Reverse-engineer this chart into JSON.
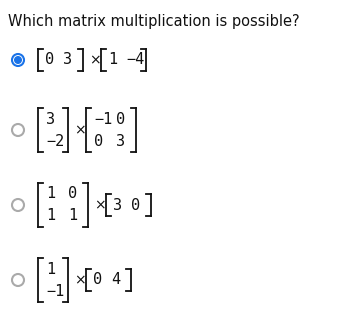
{
  "title": "Which matrix multiplication is possible?",
  "bg": "#ffffff",
  "text_color": "#111111",
  "radio_selected_color": "#1a73e8",
  "radio_unselected_color": "#aaaaaa",
  "title_fs": 10.5,
  "matrix_fs": 11,
  "times_fs": 10,
  "options": [
    {
      "selected": true,
      "parts": [
        {
          "kind": "row2",
          "r1": [
            "0",
            "3"
          ]
        },
        {
          "kind": "times"
        },
        {
          "kind": "row2",
          "r1": [
            "1",
            "−4"
          ]
        }
      ]
    },
    {
      "selected": false,
      "parts": [
        {
          "kind": "col2",
          "vals": [
            "3",
            "−2"
          ]
        },
        {
          "kind": "times"
        },
        {
          "kind": "mat22",
          "rows": [
            [
              "−1",
              "0"
            ],
            [
              "0",
              "3"
            ]
          ]
        }
      ]
    },
    {
      "selected": false,
      "parts": [
        {
          "kind": "mat22",
          "rows": [
            [
              "1",
              "0"
            ],
            [
              "1",
              "1"
            ]
          ]
        },
        {
          "kind": "times"
        },
        {
          "kind": "row2",
          "r1": [
            "3",
            "0"
          ]
        }
      ]
    },
    {
      "selected": false,
      "parts": [
        {
          "kind": "col2",
          "vals": [
            "1",
            "−1"
          ]
        },
        {
          "kind": "times"
        },
        {
          "kind": "row2",
          "r1": [
            "0",
            "4"
          ]
        }
      ]
    }
  ]
}
